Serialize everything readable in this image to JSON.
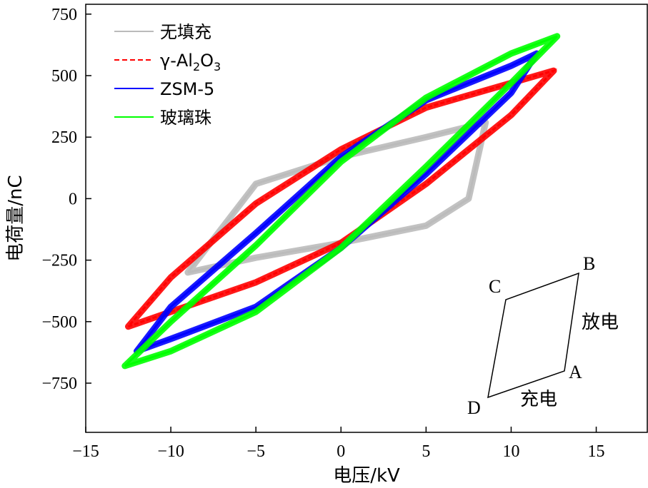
{
  "chart_data": {
    "type": "line",
    "title": "",
    "xlabel": "电压/kV",
    "ylabel": "电荷量/nC",
    "xlim": [
      -15,
      18
    ],
    "ylim": [
      -950,
      790
    ],
    "xticks": [
      -15,
      -10,
      -5,
      0,
      5,
      10,
      15
    ],
    "yticks": [
      -750,
      -500,
      -250,
      0,
      250,
      500,
      750
    ],
    "grid": false,
    "legend_position": "top-left",
    "series": [
      {
        "name": "无填充",
        "color": "#bbbbbb",
        "dashed": false,
        "loop": {
          "A": [
            7.5,
            280
          ],
          "B": [
            8.5,
            310
          ],
          "C": [
            -8.5,
            -280
          ],
          "D": [
            -9,
            -300
          ]
        },
        "points": [
          [
            -9,
            -300
          ],
          [
            -5,
            -240
          ],
          [
            0,
            -180
          ],
          [
            5,
            -110
          ],
          [
            7.5,
            0
          ],
          [
            8.5,
            310
          ],
          [
            5,
            250
          ],
          [
            0,
            170
          ],
          [
            -5,
            60
          ],
          [
            -9,
            -300
          ]
        ]
      },
      {
        "name": "γ-Al2O3",
        "name_parts": {
          "prefix": "γ-Al",
          "sub1": "2",
          "mid": "O",
          "sub2": "3"
        },
        "color": "#ff0000",
        "dashed": true,
        "points": [
          [
            -12.5,
            -520
          ],
          [
            -10,
            -460
          ],
          [
            -5,
            -340
          ],
          [
            0,
            -180
          ],
          [
            5,
            60
          ],
          [
            10,
            340
          ],
          [
            12.5,
            520
          ],
          [
            10,
            470
          ],
          [
            5,
            370
          ],
          [
            0,
            200
          ],
          [
            -5,
            -20
          ],
          [
            -10,
            -320
          ],
          [
            -12.5,
            -520
          ]
        ]
      },
      {
        "name": "ZSM-5",
        "color": "#0000ff",
        "dashed": false,
        "points": [
          [
            -12,
            -620
          ],
          [
            -10,
            -570
          ],
          [
            -5,
            -440
          ],
          [
            0,
            -200
          ],
          [
            5,
            100
          ],
          [
            10,
            430
          ],
          [
            11.5,
            590
          ],
          [
            10,
            540
          ],
          [
            5,
            400
          ],
          [
            0,
            170
          ],
          [
            -5,
            -140
          ],
          [
            -10,
            -440
          ],
          [
            -12,
            -620
          ]
        ]
      },
      {
        "name": "玻璃珠",
        "color": "#00ff00",
        "dashed": false,
        "points": [
          [
            -12.7,
            -680
          ],
          [
            -10,
            -620
          ],
          [
            -5,
            -460
          ],
          [
            0,
            -200
          ],
          [
            5,
            130
          ],
          [
            10,
            470
          ],
          [
            12.7,
            660
          ],
          [
            10,
            590
          ],
          [
            5,
            410
          ],
          [
            0,
            150
          ],
          [
            -5,
            -190
          ],
          [
            -10,
            -500
          ],
          [
            -12.7,
            -680
          ]
        ]
      }
    ],
    "inset": {
      "labels": {
        "A": "A",
        "B": "B",
        "C": "C",
        "D": "D"
      },
      "side_labels": {
        "charge": "充电",
        "discharge": "放电"
      }
    }
  }
}
